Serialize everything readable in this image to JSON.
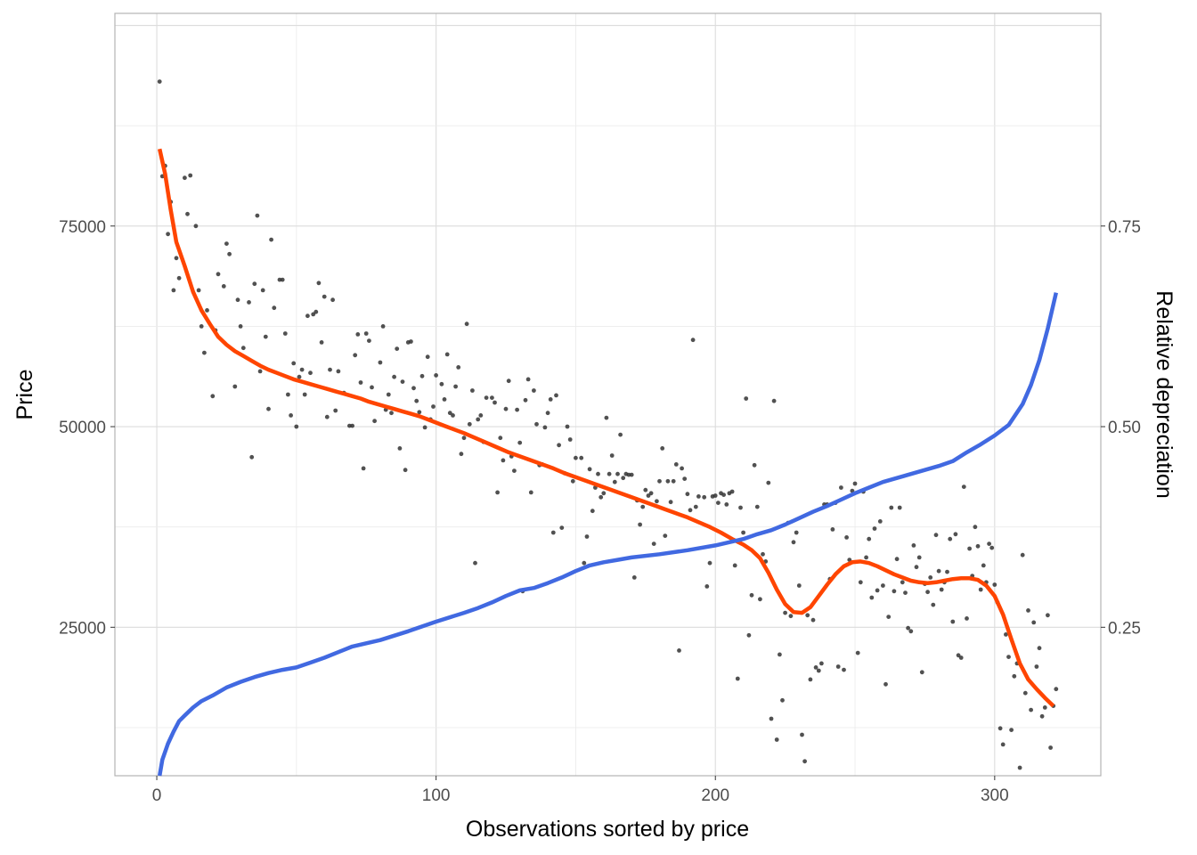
{
  "chart_data": {
    "type": "scatter",
    "xlabel": "Observations sorted by price",
    "ylabel": "Price",
    "y2label": "Relative depreciation",
    "xlim": [
      -15,
      338
    ],
    "ylim": [
      6500,
      101500
    ],
    "y2lim": [
      0.065,
      1.015
    ],
    "x_ticks": [
      {
        "value": 0,
        "label": "0"
      },
      {
        "value": 100,
        "label": "100"
      },
      {
        "value": 200,
        "label": "200"
      },
      {
        "value": 300,
        "label": "300"
      }
    ],
    "y_ticks": [
      {
        "value": 25000,
        "label": "25000"
      },
      {
        "value": 50000,
        "label": "50000"
      },
      {
        "value": 75000,
        "label": "75000"
      }
    ],
    "y2_ticks": [
      {
        "value": 0.25,
        "label": "0.25"
      },
      {
        "value": 0.5,
        "label": "0.50"
      },
      {
        "value": 0.75,
        "label": "0.75"
      }
    ],
    "grid": true,
    "colors": {
      "points": "#333333",
      "price_trend": "#ff4500",
      "depreciation": "#4169e1"
    },
    "points": [
      [
        1,
        93000
      ],
      [
        2,
        81200
      ],
      [
        3,
        82500
      ],
      [
        4,
        74000
      ],
      [
        5,
        78000
      ],
      [
        6,
        67000
      ],
      [
        7,
        71000
      ],
      [
        8,
        68500
      ],
      [
        10,
        81000
      ],
      [
        11,
        76500
      ],
      [
        12,
        81300
      ],
      [
        14,
        75000
      ],
      [
        15,
        67000
      ],
      [
        16,
        62500
      ],
      [
        17,
        59200
      ],
      [
        18,
        64500
      ],
      [
        20,
        53800
      ],
      [
        21,
        62000
      ],
      [
        22,
        69000
      ],
      [
        24,
        67500
      ],
      [
        25,
        72800
      ],
      [
        26,
        71500
      ],
      [
        28,
        55000
      ],
      [
        29,
        65800
      ],
      [
        30,
        62500
      ],
      [
        31,
        59800
      ],
      [
        33,
        65500
      ],
      [
        34,
        46200
      ],
      [
        35,
        67800
      ],
      [
        36,
        76300
      ],
      [
        37,
        56900
      ],
      [
        38,
        67000
      ],
      [
        39,
        61200
      ],
      [
        40,
        52200
      ],
      [
        41,
        73300
      ],
      [
        42,
        64800
      ],
      [
        44,
        68300
      ],
      [
        45,
        68300
      ],
      [
        46,
        61600
      ],
      [
        47,
        54000
      ],
      [
        48,
        51400
      ],
      [
        49,
        57900
      ],
      [
        50,
        50000
      ],
      [
        51,
        56200
      ],
      [
        52,
        57100
      ],
      [
        53,
        54000
      ],
      [
        54,
        63800
      ],
      [
        55,
        56700
      ],
      [
        56,
        64000
      ],
      [
        57,
        64300
      ],
      [
        58,
        67900
      ],
      [
        59,
        60500
      ],
      [
        60,
        66200
      ],
      [
        61,
        51200
      ],
      [
        62,
        57100
      ],
      [
        63,
        65800
      ],
      [
        64,
        52000
      ],
      [
        65,
        56900
      ],
      [
        67,
        54200
      ],
      [
        69,
        50100
      ],
      [
        70,
        50100
      ],
      [
        71,
        58900
      ],
      [
        72,
        61500
      ],
      [
        73,
        55500
      ],
      [
        74,
        44800
      ],
      [
        75,
        61600
      ],
      [
        76,
        60700
      ],
      [
        77,
        54900
      ],
      [
        78,
        50700
      ],
      [
        80,
        58000
      ],
      [
        81,
        62500
      ],
      [
        82,
        52100
      ],
      [
        83,
        54000
      ],
      [
        84,
        51700
      ],
      [
        85,
        56200
      ],
      [
        86,
        59700
      ],
      [
        87,
        47300
      ],
      [
        88,
        55600
      ],
      [
        89,
        44600
      ],
      [
        90,
        60500
      ],
      [
        91,
        60600
      ],
      [
        92,
        54800
      ],
      [
        93,
        53200
      ],
      [
        94,
        51800
      ],
      [
        95,
        56300
      ],
      [
        96,
        49900
      ],
      [
        97,
        58700
      ],
      [
        98,
        50900
      ],
      [
        99,
        52500
      ],
      [
        100,
        56400
      ],
      [
        102,
        55300
      ],
      [
        103,
        53400
      ],
      [
        104,
        59000
      ],
      [
        105,
        51700
      ],
      [
        106,
        51400
      ],
      [
        107,
        55000
      ],
      [
        108,
        57400
      ],
      [
        109,
        46600
      ],
      [
        110,
        48600
      ],
      [
        111,
        62800
      ],
      [
        112,
        50300
      ],
      [
        113,
        54500
      ],
      [
        114,
        33000
      ],
      [
        115,
        50900
      ],
      [
        116,
        51400
      ],
      [
        117,
        48100
      ],
      [
        118,
        53600
      ],
      [
        120,
        53600
      ],
      [
        121,
        53000
      ],
      [
        122,
        41800
      ],
      [
        123,
        48600
      ],
      [
        124,
        45800
      ],
      [
        125,
        52200
      ],
      [
        126,
        55700
      ],
      [
        127,
        46300
      ],
      [
        128,
        44500
      ],
      [
        129,
        52100
      ],
      [
        130,
        48000
      ],
      [
        131,
        29500
      ],
      [
        132,
        53300
      ],
      [
        133,
        55900
      ],
      [
        134,
        41800
      ],
      [
        135,
        54500
      ],
      [
        136,
        50300
      ],
      [
        137,
        45200
      ],
      [
        138,
        45300
      ],
      [
        139,
        49900
      ],
      [
        140,
        51700
      ],
      [
        141,
        53400
      ],
      [
        142,
        36800
      ],
      [
        143,
        53900
      ],
      [
        144,
        47700
      ],
      [
        145,
        37400
      ],
      [
        146,
        44200
      ],
      [
        147,
        50000
      ],
      [
        148,
        48400
      ],
      [
        149,
        43200
      ],
      [
        150,
        46100
      ],
      [
        152,
        46100
      ],
      [
        153,
        33000
      ],
      [
        154,
        36300
      ],
      [
        155,
        44700
      ],
      [
        156,
        39500
      ],
      [
        157,
        42400
      ],
      [
        158,
        44100
      ],
      [
        159,
        41200
      ],
      [
        160,
        41700
      ],
      [
        161,
        51100
      ],
      [
        162,
        44100
      ],
      [
        163,
        46400
      ],
      [
        164,
        43100
      ],
      [
        165,
        44100
      ],
      [
        166,
        49000
      ],
      [
        167,
        43600
      ],
      [
        168,
        44100
      ],
      [
        169,
        44000
      ],
      [
        170,
        44000
      ],
      [
        171,
        31200
      ],
      [
        172,
        40800
      ],
      [
        173,
        37800
      ],
      [
        174,
        40000
      ],
      [
        175,
        42100
      ],
      [
        176,
        41400
      ],
      [
        177,
        41700
      ],
      [
        178,
        35400
      ],
      [
        179,
        40700
      ],
      [
        180,
        43200
      ],
      [
        181,
        47300
      ],
      [
        182,
        36400
      ],
      [
        183,
        43200
      ],
      [
        184,
        40600
      ],
      [
        185,
        43200
      ],
      [
        186,
        45300
      ],
      [
        187,
        22100
      ],
      [
        188,
        44800
      ],
      [
        189,
        43500
      ],
      [
        190,
        41600
      ],
      [
        191,
        39600
      ],
      [
        192,
        60800
      ],
      [
        193,
        40000
      ],
      [
        194,
        41300
      ],
      [
        196,
        41200
      ],
      [
        197,
        30100
      ],
      [
        198,
        33000
      ],
      [
        199,
        41300
      ],
      [
        200,
        41400
      ],
      [
        201,
        40500
      ],
      [
        202,
        41700
      ],
      [
        203,
        41500
      ],
      [
        204,
        40300
      ],
      [
        205,
        41700
      ],
      [
        206,
        41900
      ],
      [
        207,
        32700
      ],
      [
        208,
        18600
      ],
      [
        209,
        39900
      ],
      [
        210,
        36800
      ],
      [
        211,
        53500
      ],
      [
        212,
        24000
      ],
      [
        213,
        29000
      ],
      [
        214,
        45200
      ],
      [
        215,
        40000
      ],
      [
        216,
        28500
      ],
      [
        217,
        34100
      ],
      [
        218,
        33200
      ],
      [
        219,
        43000
      ],
      [
        220,
        13600
      ],
      [
        221,
        53200
      ],
      [
        222,
        11000
      ],
      [
        223,
        21600
      ],
      [
        224,
        15900
      ],
      [
        225,
        26800
      ],
      [
        226,
        38000
      ],
      [
        227,
        26400
      ],
      [
        228,
        35600
      ],
      [
        229,
        36800
      ],
      [
        230,
        30200
      ],
      [
        231,
        11600
      ],
      [
        232,
        8300
      ],
      [
        233,
        26500
      ],
      [
        234,
        18500
      ],
      [
        235,
        25900
      ],
      [
        236,
        20000
      ],
      [
        237,
        19600
      ],
      [
        238,
        20500
      ],
      [
        239,
        40300
      ],
      [
        240,
        40300
      ],
      [
        241,
        31000
      ],
      [
        242,
        37200
      ],
      [
        243,
        40500
      ],
      [
        244,
        20100
      ],
      [
        245,
        42400
      ],
      [
        246,
        19700
      ],
      [
        247,
        36200
      ],
      [
        248,
        33400
      ],
      [
        249,
        42000
      ],
      [
        250,
        42900
      ],
      [
        251,
        21800
      ],
      [
        252,
        30600
      ],
      [
        253,
        41900
      ],
      [
        254,
        33700
      ],
      [
        255,
        36000
      ],
      [
        256,
        28700
      ],
      [
        257,
        37300
      ],
      [
        258,
        29600
      ],
      [
        259,
        38200
      ],
      [
        260,
        30200
      ],
      [
        261,
        17900
      ],
      [
        262,
        26300
      ],
      [
        263,
        39900
      ],
      [
        264,
        29500
      ],
      [
        265,
        33500
      ],
      [
        266,
        39900
      ],
      [
        267,
        30600
      ],
      [
        268,
        29300
      ],
      [
        269,
        24900
      ],
      [
        270,
        24500
      ],
      [
        271,
        35200
      ],
      [
        272,
        32500
      ],
      [
        273,
        33700
      ],
      [
        274,
        19400
      ],
      [
        275,
        30400
      ],
      [
        276,
        29400
      ],
      [
        277,
        31200
      ],
      [
        278,
        27800
      ],
      [
        279,
        36500
      ],
      [
        280,
        32000
      ],
      [
        281,
        29700
      ],
      [
        282,
        30600
      ],
      [
        283,
        31900
      ],
      [
        284,
        36000
      ],
      [
        285,
        25700
      ],
      [
        286,
        36600
      ],
      [
        287,
        21500
      ],
      [
        288,
        21200
      ],
      [
        289,
        42500
      ],
      [
        290,
        26100
      ],
      [
        291,
        34800
      ],
      [
        292,
        31400
      ],
      [
        293,
        37500
      ],
      [
        294,
        35100
      ],
      [
        295,
        29700
      ],
      [
        296,
        32700
      ],
      [
        297,
        30600
      ],
      [
        298,
        35400
      ],
      [
        299,
        34900
      ],
      [
        300,
        30300
      ],
      [
        301,
        28100
      ],
      [
        302,
        12400
      ],
      [
        303,
        10400
      ],
      [
        304,
        24100
      ],
      [
        305,
        21300
      ],
      [
        306,
        12200
      ],
      [
        307,
        18900
      ],
      [
        308,
        20500
      ],
      [
        309,
        7500
      ],
      [
        310,
        34000
      ],
      [
        311,
        16800
      ],
      [
        312,
        27100
      ],
      [
        313,
        14700
      ],
      [
        314,
        25600
      ],
      [
        315,
        20100
      ],
      [
        316,
        22400
      ],
      [
        317,
        13900
      ],
      [
        318,
        15000
      ],
      [
        319,
        26500
      ],
      [
        320,
        10000
      ],
      [
        321,
        15200
      ],
      [
        322,
        17300
      ]
    ],
    "series": [
      {
        "axis": "left",
        "x": [
          1,
          3,
          5,
          7,
          10,
          13,
          16,
          19,
          22,
          25,
          28,
          31,
          34,
          37,
          40,
          43,
          46,
          49,
          52,
          55,
          58,
          61,
          64,
          67,
          70,
          73,
          76,
          79,
          82,
          85,
          88,
          91,
          94,
          97,
          100,
          103,
          106,
          110,
          114,
          118,
          122,
          126,
          130,
          134,
          138,
          142,
          146,
          150,
          154,
          158,
          162,
          166,
          170,
          174,
          178,
          182,
          186,
          190,
          194,
          198,
          202,
          206,
          210,
          213,
          216,
          219,
          222,
          225,
          228,
          231,
          234,
          237,
          240,
          243,
          246,
          249,
          252,
          255,
          258,
          261,
          264,
          267,
          270,
          273,
          276,
          279,
          282,
          285,
          288,
          291,
          294,
          297,
          300,
          303,
          306,
          309,
          312,
          315,
          318,
          321
        ],
        "values": [
          84600,
          81500,
          77000,
          73000,
          70000,
          66800,
          64500,
          62800,
          61200,
          60200,
          59400,
          58800,
          58200,
          57600,
          57100,
          56700,
          56300,
          55900,
          55600,
          55300,
          55000,
          54700,
          54400,
          54100,
          53800,
          53500,
          53100,
          52800,
          52500,
          52200,
          51900,
          51600,
          51300,
          50900,
          50500,
          50100,
          49700,
          49200,
          48600,
          48000,
          47400,
          46800,
          46300,
          45800,
          45300,
          44800,
          44200,
          43700,
          43200,
          42700,
          42200,
          41700,
          41200,
          40700,
          40200,
          39700,
          39200,
          38700,
          38100,
          37500,
          36800,
          36000,
          35300,
          34600,
          33600,
          31800,
          29700,
          27900,
          26900,
          26800,
          27500,
          28900,
          30300,
          31600,
          32600,
          33100,
          33200,
          33000,
          32600,
          32100,
          31600,
          31200,
          30800,
          30600,
          30500,
          30600,
          30800,
          31000,
          31100,
          31100,
          30900,
          30200,
          28900,
          26600,
          23500,
          20500,
          18500,
          17300,
          16200,
          15200
        ]
      },
      {
        "axis": "right",
        "x": [
          1,
          2,
          4,
          6,
          8,
          10,
          13,
          16,
          20,
          25,
          30,
          35,
          40,
          45,
          50,
          55,
          60,
          65,
          70,
          75,
          80,
          90,
          100,
          110,
          115,
          120,
          125,
          130,
          135,
          140,
          145,
          150,
          155,
          160,
          165,
          170,
          180,
          190,
          200,
          210,
          215,
          220,
          225,
          230,
          235,
          240,
          245,
          250,
          255,
          260,
          265,
          270,
          275,
          280,
          285,
          290,
          295,
          300,
          305,
          310,
          313,
          316,
          319,
          322
        ],
        "values": [
          0.065,
          0.085,
          0.105,
          0.12,
          0.133,
          0.14,
          0.15,
          0.158,
          0.165,
          0.175,
          0.182,
          0.188,
          0.193,
          0.197,
          0.2,
          0.206,
          0.212,
          0.219,
          0.226,
          0.23,
          0.234,
          0.245,
          0.257,
          0.268,
          0.274,
          0.281,
          0.289,
          0.296,
          0.299,
          0.305,
          0.312,
          0.32,
          0.327,
          0.331,
          0.334,
          0.337,
          0.341,
          0.346,
          0.352,
          0.36,
          0.366,
          0.371,
          0.378,
          0.386,
          0.394,
          0.401,
          0.409,
          0.417,
          0.424,
          0.431,
          0.436,
          0.441,
          0.446,
          0.451,
          0.457,
          0.468,
          0.478,
          0.489,
          0.502,
          0.528,
          0.552,
          0.583,
          0.622,
          0.667
        ]
      }
    ]
  }
}
